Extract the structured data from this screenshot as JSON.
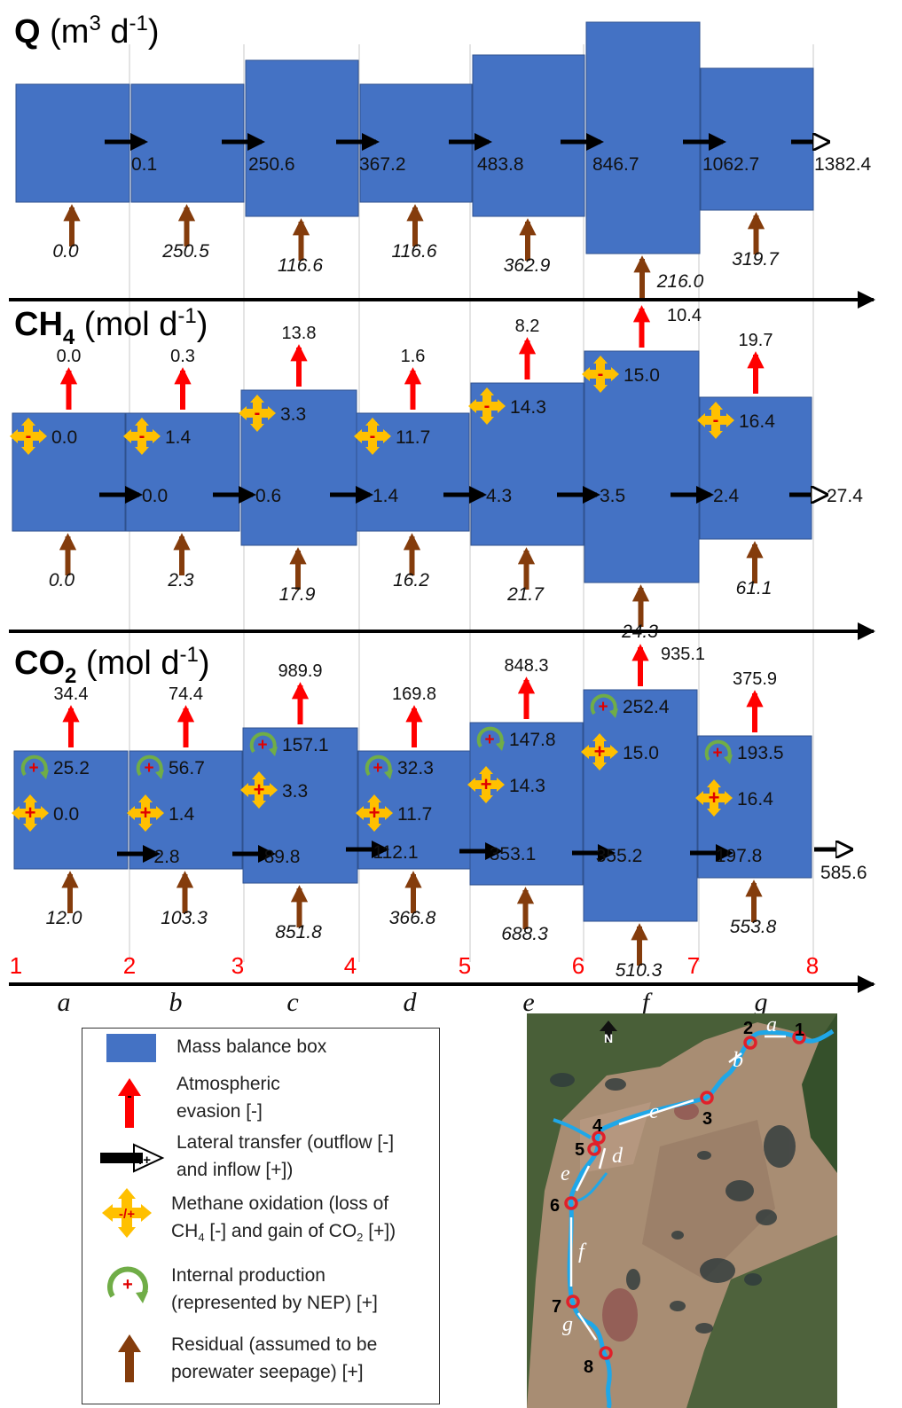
{
  "colors": {
    "box": "#4472C4",
    "box_border": "#2F528F",
    "evasion": "#FF0000",
    "lateral": "#000000",
    "oxidation": "#FFC000",
    "production": "#70AD47",
    "residual": "#843C0C",
    "segment_line": "#C8C8C8",
    "point_label": "#FF0000",
    "river": "#1FA7E8",
    "site_marker": "#E0202A"
  },
  "panels": [
    {
      "id": "q",
      "title_main": "Q",
      "title_unit_pre": " (m",
      "title_sup": "3",
      "title_mid": " d",
      "title_sup2": "-1",
      "title_end": ")",
      "lateral": [
        "0.1",
        "250.6",
        "367.2",
        "483.8",
        "846.7",
        "1062.7",
        "1382.4"
      ],
      "residual": [
        "0.0",
        "250.5",
        "116.6",
        "116.6",
        "362.9",
        "216.0",
        "319.7"
      ]
    },
    {
      "id": "ch4",
      "title_main": "CH",
      "title_sub": "4",
      "title_unit": " (mol d",
      "title_sup": "-1",
      "title_end": ")",
      "evasion": [
        "0.0",
        "0.3",
        "13.8",
        "1.6",
        "8.2",
        "10.4",
        "19.7"
      ],
      "oxidation": [
        "0.0",
        "1.4",
        "3.3",
        "11.7",
        "14.3",
        "15.0",
        "16.4"
      ],
      "lateral": [
        "0.0",
        "0.6",
        "1.4",
        "4.3",
        "3.5",
        "2.4",
        "27.4"
      ],
      "residual": [
        "0.0",
        "2.3",
        "17.9",
        "16.2",
        "21.7",
        "24.3",
        "61.1"
      ]
    },
    {
      "id": "co2",
      "title_main": "CO",
      "title_sub": "2",
      "title_unit": " (mol d",
      "title_sup": "-1",
      "title_end": ")",
      "evasion": [
        "34.4",
        "74.4",
        "989.9",
        "169.8",
        "848.3",
        "935.1",
        "375.9"
      ],
      "production": [
        "25.2",
        "56.7",
        "157.1",
        "32.3",
        "147.8",
        "252.4",
        "193.5"
      ],
      "oxidation": [
        "0.0",
        "1.4",
        "3.3",
        "11.7",
        "14.3",
        "15.0",
        "16.4"
      ],
      "lateral": [
        "2.8",
        "89.8",
        "112.1",
        "353.1",
        "355.2",
        "197.8",
        "585.6"
      ],
      "residual": [
        "12.0",
        "103.3",
        "851.8",
        "366.8",
        "688.3",
        "510.3",
        "553.8"
      ]
    }
  ],
  "axis": {
    "points": [
      "1",
      "2",
      "3",
      "4",
      "5",
      "6",
      "7",
      "8"
    ],
    "segments": [
      "a",
      "b",
      "c",
      "d",
      "e",
      "f",
      "g"
    ]
  },
  "legend": {
    "items": [
      {
        "icon": "box-icon",
        "lines": [
          "Mass balance box"
        ]
      },
      {
        "icon": "evasion-arrow-icon",
        "lines": [
          "Atmospheric",
          "evasion [-]"
        ]
      },
      {
        "icon": "lateral-arrow-icon",
        "lines": [
          "Lateral transfer (outflow [-]",
          "and inflow [+])"
        ]
      },
      {
        "icon": "oxidation-cross-icon",
        "lines": [
          "Methane oxidation (loss of",
          "CH4 [-] and gain of CO2 [+])"
        ]
      },
      {
        "icon": "production-circle-icon",
        "lines": [
          "Internal production",
          "(represented by NEP) [+]"
        ]
      },
      {
        "icon": "residual-arrow-icon",
        "lines": [
          "Residual (assumed to be",
          "porewater seepage) [+]"
        ]
      }
    ],
    "symbols": {
      "minus": "-",
      "plus": "+",
      "minus_plus": "-/+"
    }
  },
  "map": {
    "north": "N",
    "sites": [
      "1",
      "2",
      "3",
      "4",
      "5",
      "6",
      "7",
      "8"
    ],
    "segments": [
      "a",
      "b",
      "c",
      "d",
      "e",
      "f",
      "g"
    ]
  }
}
